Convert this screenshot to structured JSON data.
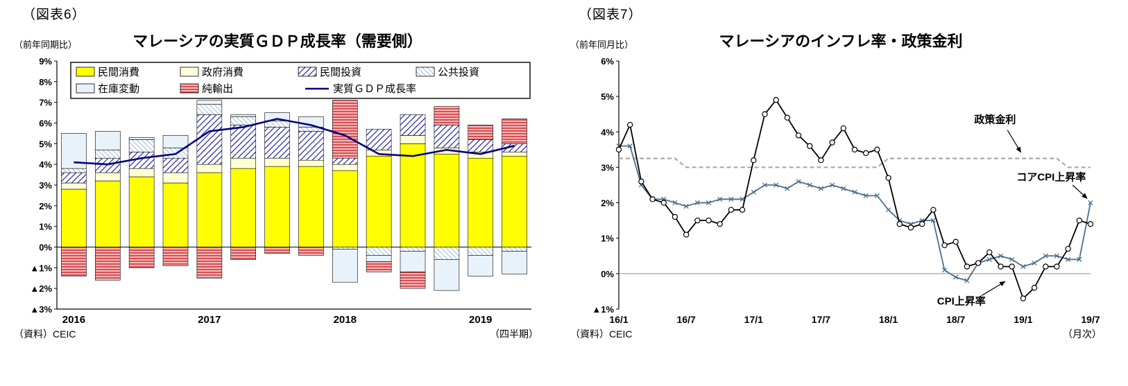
{
  "fig6": {
    "figure_label": "（図表6）",
    "axis_unit": "（前年同期比）",
    "title": "マレーシアの実質ＧＤＰ成長率（需要側）",
    "source": "（資料）CEIC",
    "x_unit": "（四半期）"
  },
  "fig7": {
    "figure_label": "（図表7）",
    "axis_unit": "（前年同月比）",
    "title": "マレーシアのインフレ率・政策金利",
    "source": "（資料）CEIC",
    "x_unit": "（月次）"
  },
  "chart_data": [
    {
      "type": "bar",
      "subtype": "stacked-bars-with-line",
      "title": "マレーシアの実質ＧＤＰ成長率（需要側）",
      "ylabel": "（前年同期比）",
      "ylim": [
        -3,
        9
      ],
      "ytick_step": 1,
      "negative_tick_prefix": "▲",
      "categories": [
        "2016Q1",
        "2016Q2",
        "2016Q3",
        "2016Q4",
        "2017Q1",
        "2017Q2",
        "2017Q3",
        "2017Q4",
        "2018Q1",
        "2018Q2",
        "2018Q3",
        "2018Q4",
        "2019Q1",
        "2019Q2"
      ],
      "x_year_labels": [
        {
          "label": "2016",
          "index": 0
        },
        {
          "label": "2017",
          "index": 4
        },
        {
          "label": "2018",
          "index": 8
        },
        {
          "label": "2019",
          "index": 12
        }
      ],
      "series": [
        {
          "name": "民間消費",
          "style": "yellow",
          "values": [
            2.8,
            3.2,
            3.4,
            3.1,
            3.6,
            3.8,
            3.9,
            3.9,
            3.7,
            4.4,
            5.0,
            4.5,
            4.3,
            4.4
          ]
        },
        {
          "name": "政府消費",
          "style": "cream",
          "values": [
            0.3,
            0.4,
            0.4,
            0.5,
            0.4,
            0.5,
            0.4,
            0.3,
            0.3,
            0.3,
            0.4,
            0.3,
            0.3,
            0.2
          ]
        },
        {
          "name": "民間投資",
          "style": "blue-hatch",
          "values": [
            0.5,
            0.7,
            0.8,
            0.7,
            2.4,
            1.6,
            1.5,
            1.4,
            0.3,
            1.0,
            1.0,
            1.1,
            0.6,
            0.4
          ]
        },
        {
          "name": "公共投資",
          "style": "ltblue-hatch",
          "values": [
            0.2,
            0.4,
            0.6,
            0.5,
            0.5,
            0.4,
            0.3,
            0.2,
            -0.1,
            -0.4,
            -0.2,
            -0.6,
            -0.4,
            -0.2
          ]
        },
        {
          "name": "在庫変動",
          "style": "ltblue-solid",
          "values": [
            1.7,
            0.9,
            0.1,
            0.6,
            0.2,
            0.1,
            0.4,
            0.5,
            -1.6,
            -0.3,
            -1.0,
            -1.5,
            -1.0,
            -1.1
          ]
        },
        {
          "name": "純輸出",
          "style": "red-hatch",
          "values": [
            -1.4,
            -1.6,
            -1.0,
            -0.9,
            -1.5,
            -0.6,
            -0.3,
            -0.4,
            2.8,
            -0.5,
            -0.8,
            0.9,
            0.7,
            1.2
          ]
        }
      ],
      "line_series": {
        "name": "実質ＧＤＰ成長率",
        "color": "#000080",
        "values": [
          4.1,
          4.0,
          4.3,
          4.5,
          5.6,
          5.8,
          6.2,
          5.9,
          5.4,
          4.5,
          4.4,
          4.7,
          4.5,
          4.9
        ]
      },
      "legend_rows": [
        [
          "民間消費",
          "政府消費",
          "民間投資",
          "公共投資"
        ],
        [
          "在庫変動",
          "純輸出",
          "実質ＧＤＰ成長率"
        ]
      ],
      "colors": {
        "yellow": "#FFFF00",
        "cream": "#FFFFD6",
        "blue_hatch_line": "#2222AA",
        "ltblue_hatch_line": "#8FB4D9",
        "ltblue_solid": "#E7F2FA",
        "red_hatch_bg": "#F5B8BC",
        "red_hatch_line": "#CC2222",
        "gdp_line": "#000080"
      }
    },
    {
      "type": "line",
      "title": "マレーシアのインフレ率・政策金利",
      "ylabel": "（前年同月比）",
      "ylim": [
        -1,
        6
      ],
      "ytick_step": 1,
      "negative_tick_prefix": "▲",
      "n_points": 43,
      "x_labels_shown": [
        "16/1",
        "16/7",
        "17/1",
        "17/7",
        "18/1",
        "18/7",
        "19/1",
        "19/7"
      ],
      "x_label_indices": [
        0,
        6,
        12,
        18,
        24,
        30,
        36,
        42
      ],
      "series": [
        {
          "name": "政策金利",
          "color": "#A8A8A8",
          "dash": true,
          "marker": "none",
          "values": [
            3.25,
            3.25,
            3.25,
            3.25,
            3.25,
            3.25,
            3.0,
            3.0,
            3.0,
            3.0,
            3.0,
            3.0,
            3.0,
            3.0,
            3.0,
            3.0,
            3.0,
            3.0,
            3.0,
            3.0,
            3.0,
            3.0,
            3.0,
            3.0,
            3.25,
            3.25,
            3.25,
            3.25,
            3.25,
            3.25,
            3.25,
            3.25,
            3.25,
            3.25,
            3.25,
            3.25,
            3.25,
            3.25,
            3.25,
            3.25,
            3.0,
            3.0,
            3.0
          ]
        },
        {
          "name": "コアCPI上昇率",
          "color": "#4A6E8A",
          "dash": false,
          "marker": "x",
          "values": [
            3.6,
            3.6,
            2.5,
            2.1,
            2.1,
            2.0,
            1.9,
            2.0,
            2.0,
            2.1,
            2.1,
            2.1,
            2.3,
            2.5,
            2.5,
            2.4,
            2.6,
            2.5,
            2.4,
            2.5,
            2.4,
            2.3,
            2.2,
            2.2,
            1.8,
            1.5,
            1.4,
            1.5,
            1.5,
            0.1,
            -0.1,
            -0.2,
            0.3,
            0.4,
            0.5,
            0.4,
            0.2,
            0.3,
            0.5,
            0.5,
            0.4,
            0.4,
            2.0
          ]
        },
        {
          "name": "CPI上昇率",
          "color": "#000000",
          "dash": false,
          "marker": "circle",
          "values": [
            3.5,
            4.2,
            2.6,
            2.1,
            2.0,
            1.6,
            1.1,
            1.5,
            1.5,
            1.4,
            1.8,
            1.8,
            3.2,
            4.5,
            4.9,
            4.4,
            3.9,
            3.6,
            3.2,
            3.7,
            4.1,
            3.5,
            3.4,
            3.5,
            2.7,
            1.4,
            1.3,
            1.4,
            1.8,
            0.8,
            0.9,
            0.2,
            0.3,
            0.6,
            0.2,
            0.2,
            -0.7,
            -0.4,
            0.2,
            0.2,
            0.7,
            1.5,
            1.4
          ]
        }
      ],
      "annotations": [
        {
          "text": "政策金利",
          "x": 33.5,
          "y": 4.35,
          "arrow": [
            34.6,
            4.05,
            35.8,
            3.42
          ]
        },
        {
          "text": "コアCPI上昇率",
          "x": 38.5,
          "y": 2.72,
          "arrow": [
            40.4,
            2.5,
            41.7,
            2.12
          ]
        },
        {
          "text": "CPI上昇率",
          "x": 30.5,
          "y": -0.78,
          "arrow": [
            32.3,
            -0.62,
            34.4,
            -0.22
          ]
        }
      ]
    }
  ]
}
